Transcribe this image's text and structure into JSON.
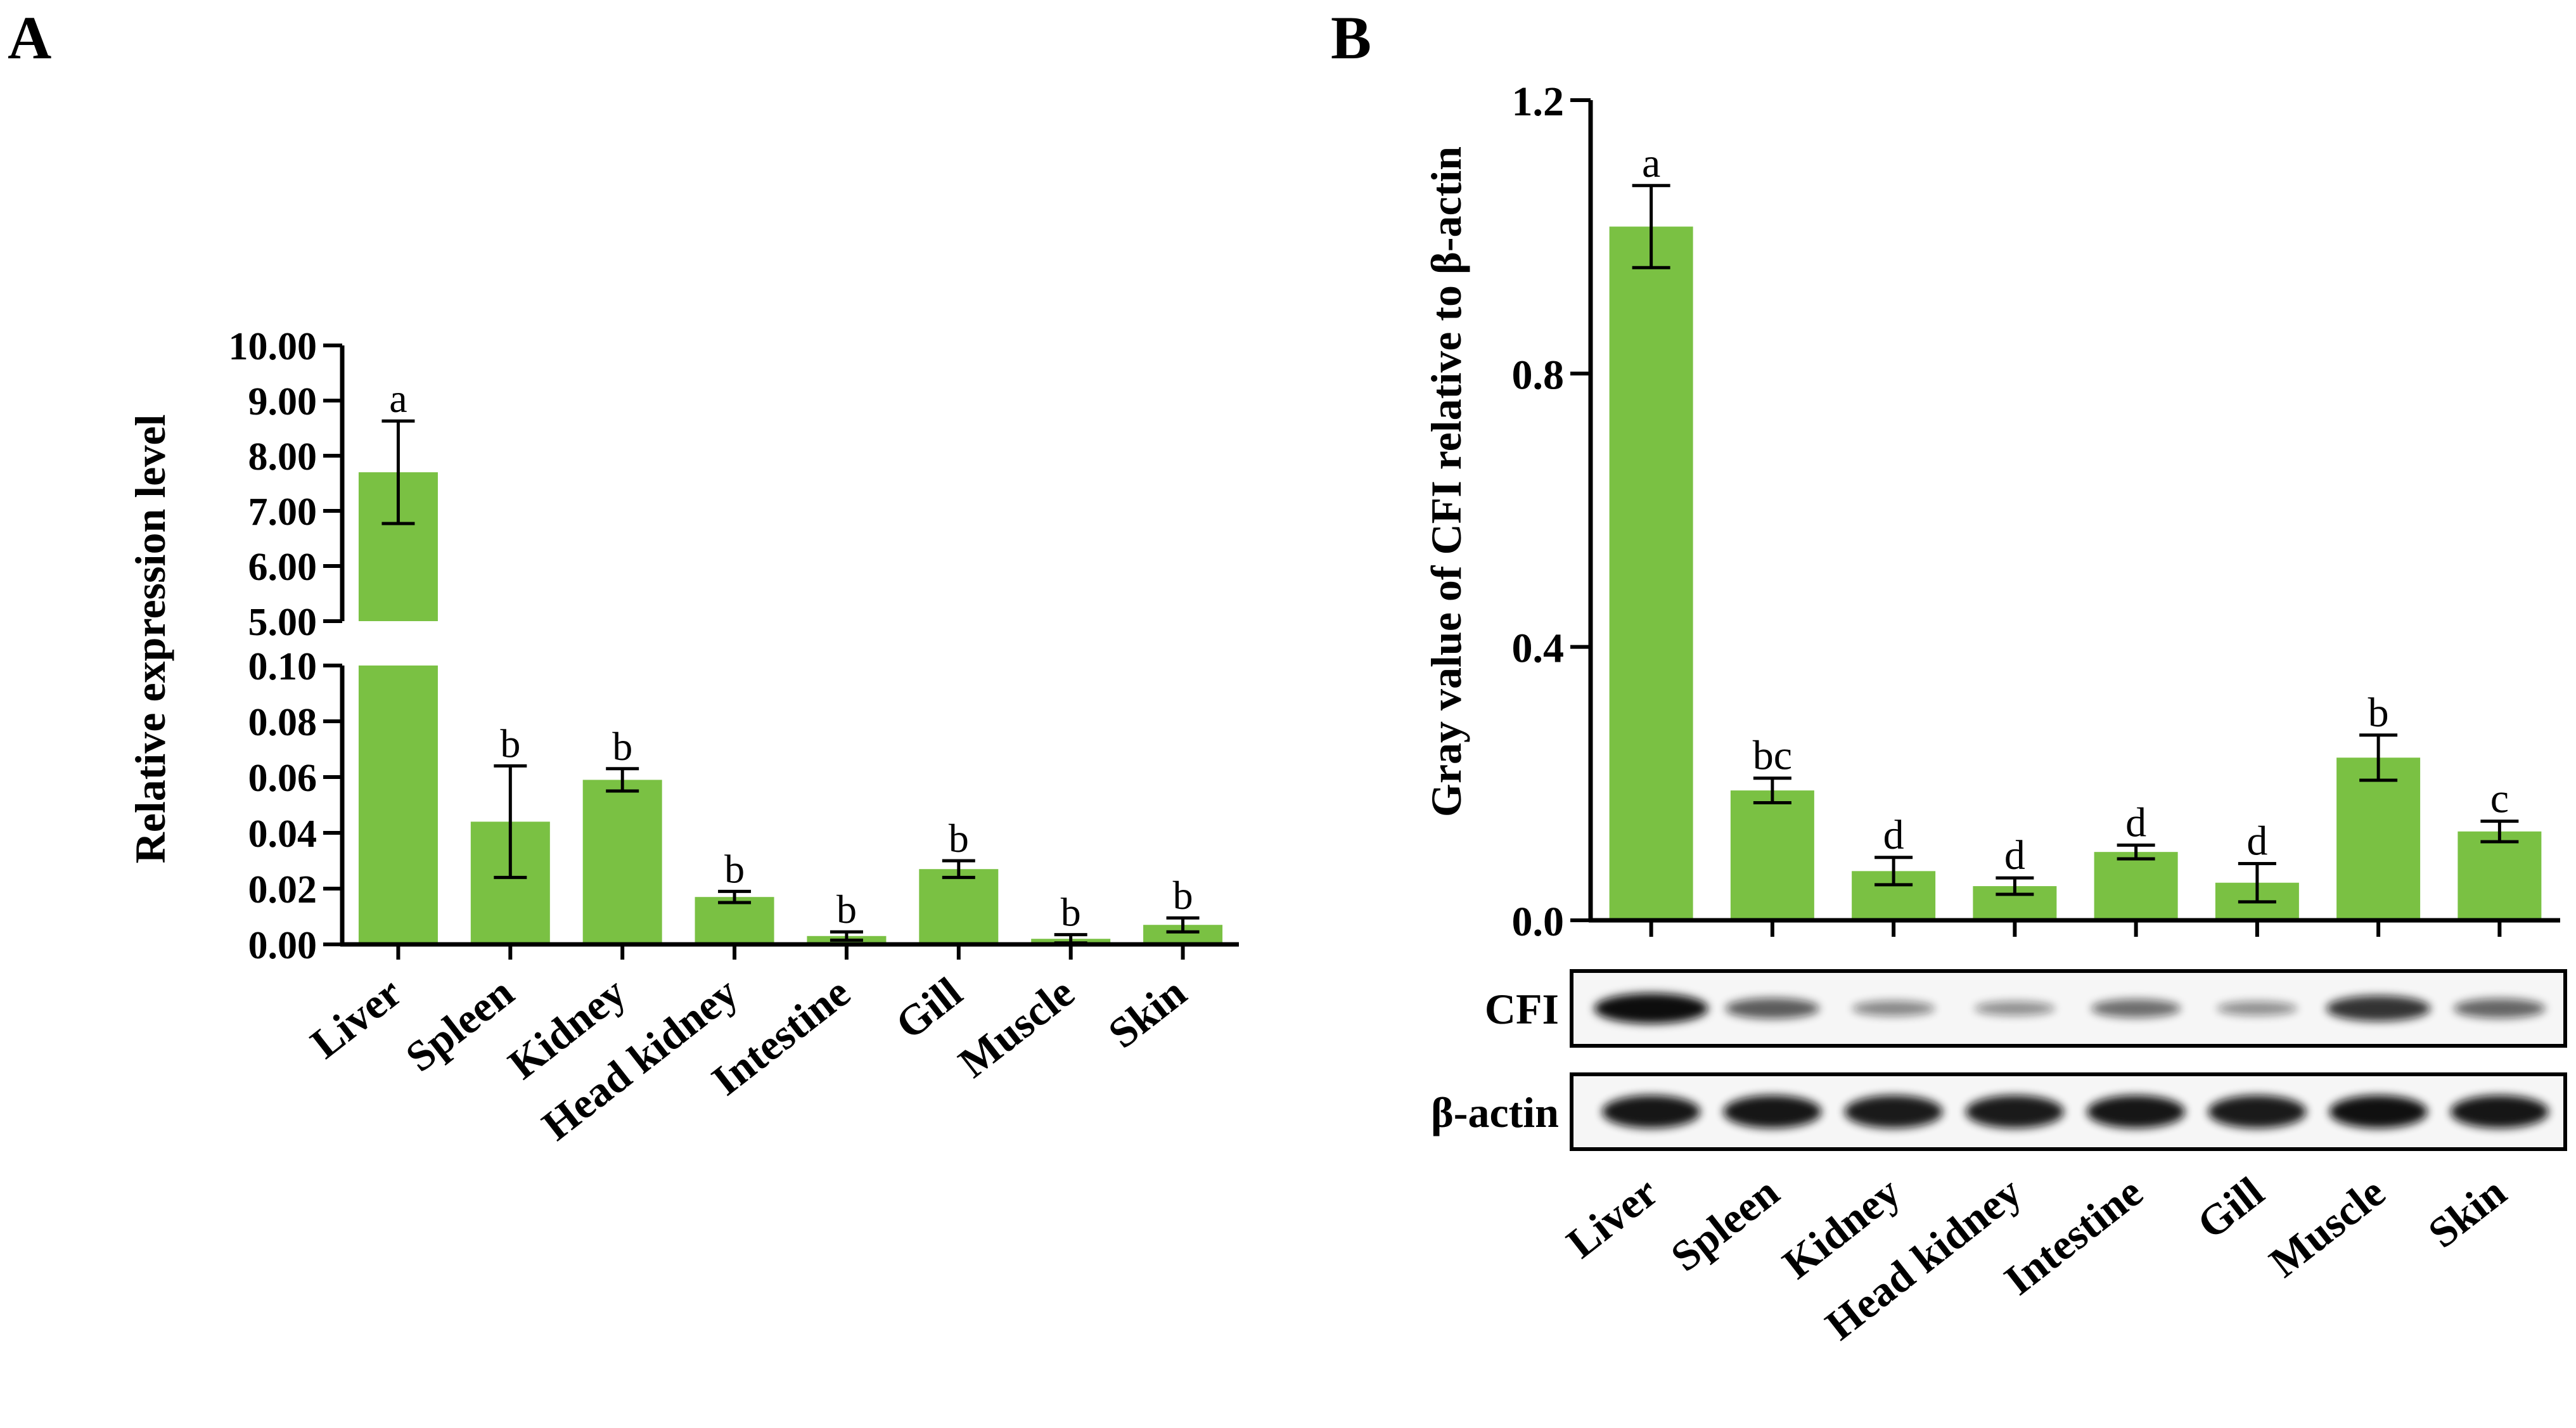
{
  "figure": {
    "panel_labels": [
      "A",
      "B"
    ]
  },
  "colors": {
    "bar": "#7AC143",
    "axis": "#000000"
  },
  "chart_data": [
    {
      "panel": "A",
      "type": "bar",
      "title": "",
      "xlabel": "",
      "ylabel": "Relative expression level",
      "categories": [
        "Liver",
        "Spleen",
        "Kidney",
        "Head kidney",
        "Intestine",
        "Gill",
        "Muscle",
        "Skin"
      ],
      "values": [
        7.7,
        0.044,
        0.059,
        0.017,
        0.003,
        0.027,
        0.002,
        0.007
      ],
      "errors": [
        0.93,
        0.02,
        0.004,
        0.002,
        0.0015,
        0.003,
        0.0015,
        0.0025
      ],
      "letters": [
        "a",
        "b",
        "b",
        "b",
        "b",
        "b",
        "b",
        "b"
      ],
      "y_axis_broken": true,
      "lower_segment": {
        "ylim": [
          0,
          0.1
        ],
        "ticks": [
          "0.00",
          "0.02",
          "0.04",
          "0.06",
          "0.08",
          "0.10"
        ]
      },
      "upper_segment": {
        "ylim": [
          5,
          10
        ],
        "ticks": [
          "5.00",
          "6.00",
          "7.00",
          "8.00",
          "9.00",
          "10.00"
        ]
      }
    },
    {
      "panel": "B",
      "type": "bar",
      "title": "",
      "xlabel": "",
      "ylabel": "Gray value of CFI relative to β-actin",
      "categories": [
        "Liver",
        "Spleen",
        "Kidney",
        "Head kidney",
        "Intestine",
        "Gill",
        "Muscle",
        "Skin"
      ],
      "values": [
        1.015,
        0.19,
        0.072,
        0.05,
        0.1,
        0.055,
        0.238,
        0.13
      ],
      "errors": [
        0.06,
        0.018,
        0.02,
        0.012,
        0.01,
        0.028,
        0.033,
        0.015
      ],
      "letters": [
        "a",
        "bc",
        "d",
        "d",
        "d",
        "d",
        "b",
        "c"
      ],
      "ylim": [
        0,
        1.2
      ],
      "yticks": [
        "0.0",
        "0.4",
        "0.8",
        "1.2"
      ],
      "blots": [
        {
          "label": "CFI",
          "intensity": [
            1.0,
            0.55,
            0.3,
            0.25,
            0.45,
            0.25,
            0.78,
            0.5
          ]
        },
        {
          "label": "β-actin",
          "intensity": [
            0.95,
            0.95,
            0.92,
            0.92,
            0.95,
            0.92,
            0.98,
            0.95
          ]
        }
      ]
    }
  ]
}
